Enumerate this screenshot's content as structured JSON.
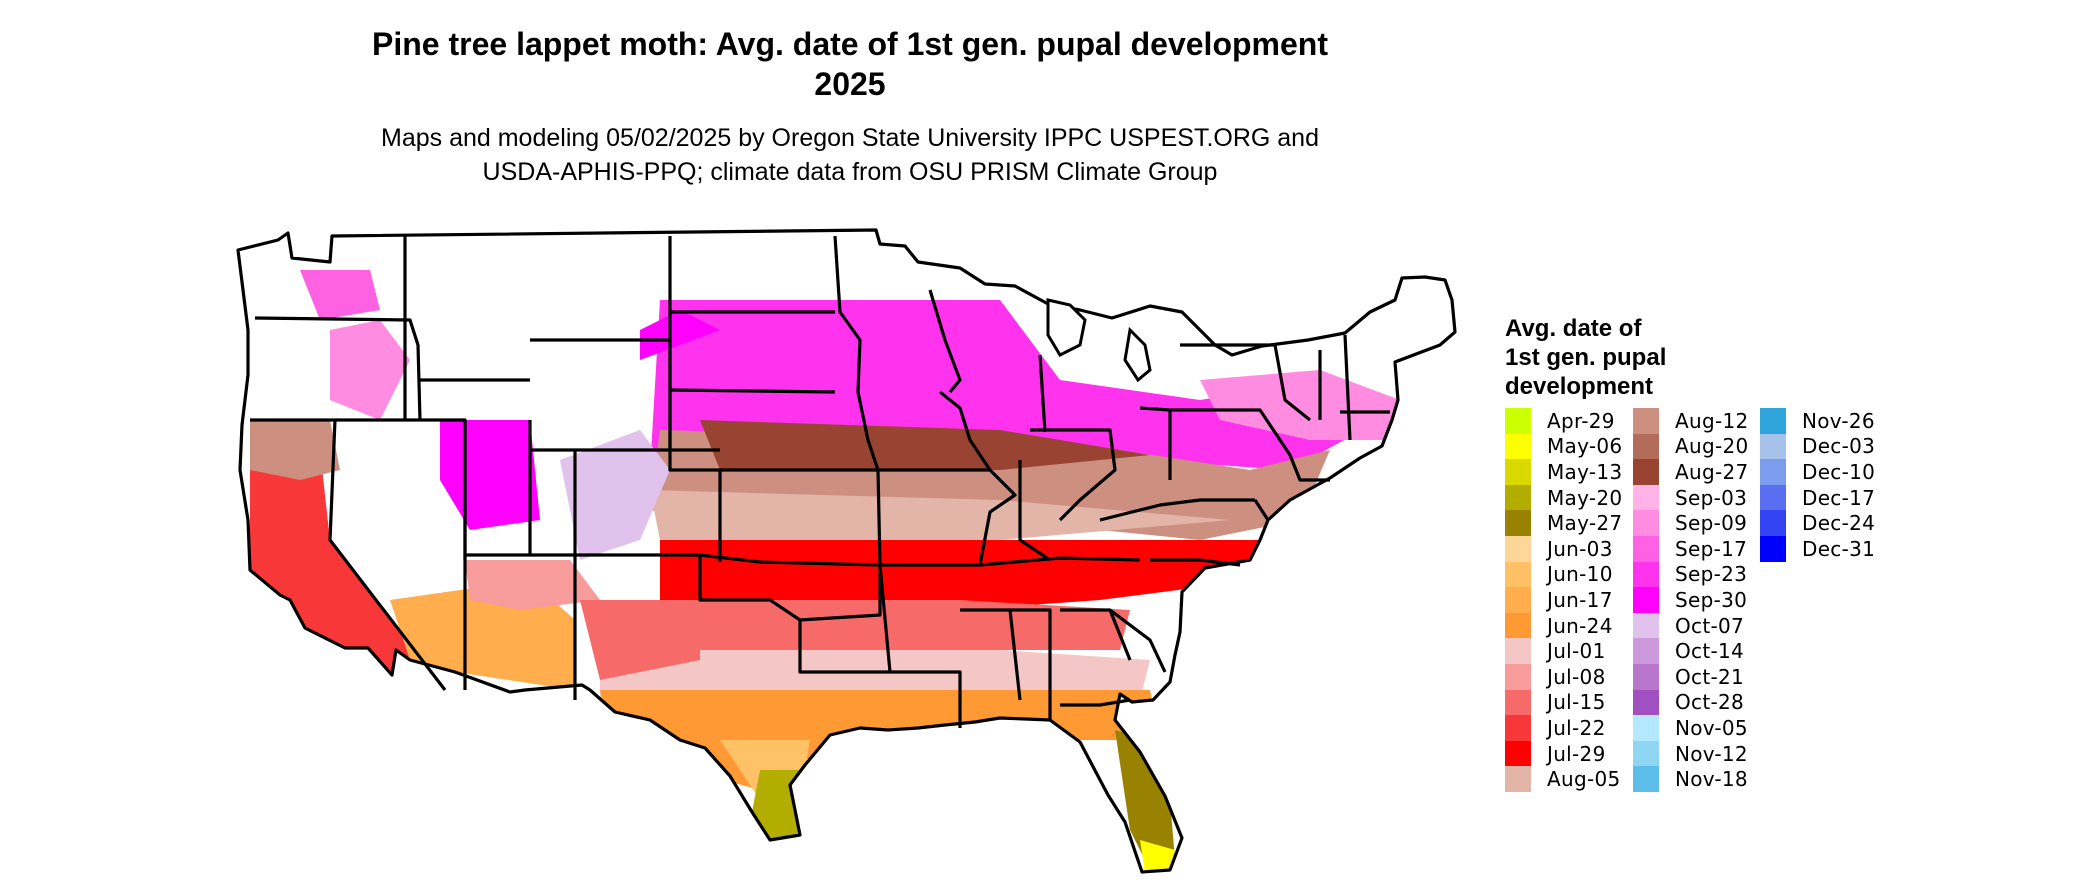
{
  "title": {
    "line1": "Pine tree lappet moth: Avg. date of 1st gen. pupal development",
    "line2": "2025"
  },
  "subtitle": {
    "line1": "Maps and modeling 05/02/2025 by Oregon State University IPPC USPEST.ORG and",
    "line2": "USDA-APHIS-PPQ; climate data from OSU PRISM Climate Group"
  },
  "legend": {
    "title_lines": [
      "Avg. date of",
      "1st gen. pupal",
      "development"
    ],
    "columns": [
      [
        {
          "label": "Apr-29",
          "color": "#ccff00"
        },
        {
          "label": "May-06",
          "color": "#ffff00"
        },
        {
          "label": "May-13",
          "color": "#d9d900"
        },
        {
          "label": "May-20",
          "color": "#b3ad00"
        },
        {
          "label": "May-27",
          "color": "#998200"
        },
        {
          "label": "Jun-03",
          "color": "#ffd699"
        },
        {
          "label": "Jun-10",
          "color": "#ffc166"
        },
        {
          "label": "Jun-17",
          "color": "#ffad4d"
        },
        {
          "label": "Jun-24",
          "color": "#ff9933"
        },
        {
          "label": "Jul-01",
          "color": "#f4c6c6"
        },
        {
          "label": "Jul-08",
          "color": "#f79b9b"
        },
        {
          "label": "Jul-15",
          "color": "#f76a6a"
        },
        {
          "label": "Jul-22",
          "color": "#f83838"
        },
        {
          "label": "Jul-29",
          "color": "#ff0000"
        },
        {
          "label": "Aug-05",
          "color": "#e2b5a8"
        }
      ],
      [
        {
          "label": "Aug-12",
          "color": "#cc8f80"
        },
        {
          "label": "Aug-20",
          "color": "#b36b5a"
        },
        {
          "label": "Aug-27",
          "color": "#994433"
        },
        {
          "label": "Sep-03",
          "color": "#ffb3e6"
        },
        {
          "label": "Sep-09",
          "color": "#ff8ce0"
        },
        {
          "label": "Sep-17",
          "color": "#ff61e3"
        },
        {
          "label": "Sep-23",
          "color": "#ff33ee"
        },
        {
          "label": "Sep-30",
          "color": "#ff00ff"
        },
        {
          "label": "Oct-07",
          "color": "#e0c2ec"
        },
        {
          "label": "Oct-14",
          "color": "#cc99dd"
        },
        {
          "label": "Oct-21",
          "color": "#b877cc"
        },
        {
          "label": "Oct-28",
          "color": "#a050c0"
        },
        {
          "label": "Nov-05",
          "color": "#b3e8ff"
        },
        {
          "label": "Nov-12",
          "color": "#8fd6f2"
        },
        {
          "label": "Nov-18",
          "color": "#5cbde8"
        }
      ],
      [
        {
          "label": "Nov-26",
          "color": "#2ea6dc"
        },
        {
          "label": "Dec-03",
          "color": "#a6c2ea"
        },
        {
          "label": "Dec-10",
          "color": "#7c9ded"
        },
        {
          "label": "Dec-17",
          "color": "#5a6ef2"
        },
        {
          "label": "Dec-24",
          "color": "#3344f5"
        },
        {
          "label": "Dec-31",
          "color": "#0000ff"
        }
      ]
    ]
  }
}
